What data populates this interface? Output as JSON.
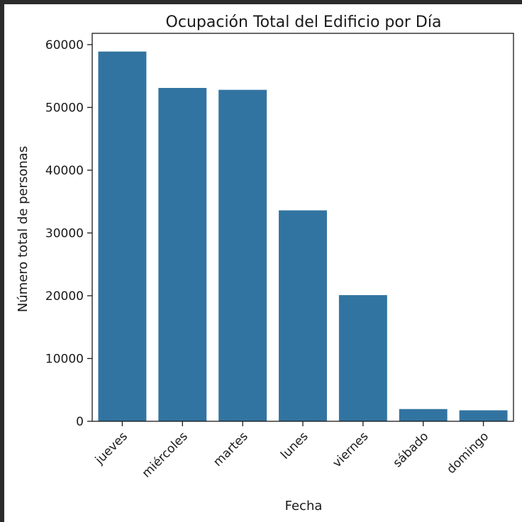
{
  "chart_data": {
    "type": "bar",
    "title": "Ocupación Total del Edificio por Día",
    "xlabel": "Fecha",
    "ylabel": "Número total de personas",
    "categories": [
      "jueves",
      "miércoles",
      "martes",
      "lunes",
      "viernes",
      "sábado",
      "domingo"
    ],
    "values": [
      58900,
      53100,
      52800,
      33600,
      20100,
      1950,
      1750
    ],
    "ylim": [
      0,
      61800
    ],
    "yticks": [
      0,
      10000,
      20000,
      30000,
      40000,
      50000,
      60000
    ],
    "grid": false,
    "bar_color": "#3274a1"
  }
}
